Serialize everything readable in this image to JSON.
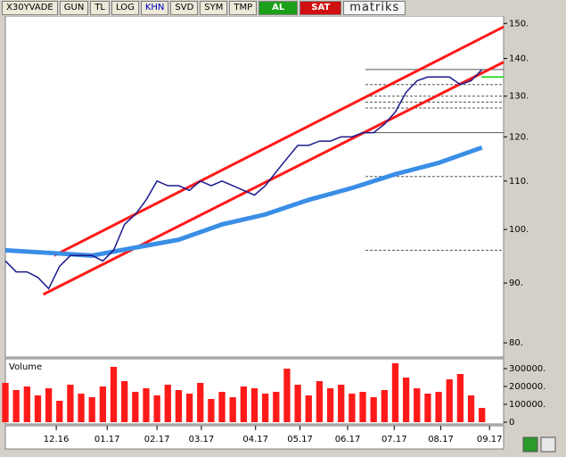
{
  "toolbar": {
    "symbol": "X30YVADE",
    "buttons": [
      "GUN",
      "TL",
      "LOG",
      "KHN",
      "SVD",
      "SYM",
      "TMP"
    ],
    "buy": "AL",
    "sell": "SAT",
    "brand": "matriks"
  },
  "chart_data": {
    "type": "line",
    "log_scale": true,
    "xlim": [
      0,
      46
    ],
    "xticks": [
      {
        "value": 4.7,
        "label": "12.16"
      },
      {
        "value": 9.4,
        "label": "01.17"
      },
      {
        "value": 14,
        "label": "02.17"
      },
      {
        "value": 18.1,
        "label": "03.17"
      },
      {
        "value": 23.1,
        "label": "04.17"
      },
      {
        "value": 27.2,
        "label": "05.17"
      },
      {
        "value": 31.6,
        "label": "06.17"
      },
      {
        "value": 35.9,
        "label": "07.17"
      },
      {
        "value": 40.2,
        "label": "08.17"
      },
      {
        "value": 44.7,
        "label": "09.17"
      }
    ],
    "ylim": [
      77.8,
      152.2
    ],
    "yticks": [
      {
        "value": 80,
        "label": "80."
      },
      {
        "value": 90,
        "label": "90."
      },
      {
        "value": 100,
        "label": "100."
      },
      {
        "value": 110,
        "label": "110."
      },
      {
        "value": 120,
        "label": "120."
      },
      {
        "value": 130,
        "label": "130."
      },
      {
        "value": 140,
        "label": "140."
      },
      {
        "value": 150,
        "label": "150."
      }
    ],
    "series": [
      {
        "color": "#ff1a1a",
        "width": 3,
        "x": [
          4.5,
          46
        ],
        "values": [
          95,
          149
        ]
      },
      {
        "color": "#ff1a1a",
        "width": 3,
        "x": [
          3.5,
          46
        ],
        "values": [
          88,
          139
        ]
      },
      {
        "color": "#3a8ee6",
        "width": 5,
        "x": [
          0,
          4,
          8,
          12,
          16,
          20,
          24,
          28,
          32,
          36,
          40,
          44
        ],
        "values": [
          96,
          95.5,
          95,
          96.5,
          98,
          101,
          103,
          106,
          108.5,
          111.5,
          114,
          117.5
        ]
      },
      {
        "color": "#1a1a8c",
        "width": 1.5,
        "x": [
          0,
          1,
          2,
          3,
          4,
          5,
          6,
          7,
          8,
          9,
          10,
          11,
          12,
          13,
          14,
          15,
          16,
          17,
          18,
          19,
          20,
          21,
          22,
          23,
          24,
          25,
          26,
          27,
          28,
          29,
          30,
          31,
          32,
          33,
          34,
          35,
          36,
          37,
          38,
          39,
          40,
          41,
          42,
          43,
          44
        ],
        "values": [
          94,
          92,
          92,
          91,
          89,
          93,
          95,
          95,
          95,
          94,
          96,
          101,
          103,
          106,
          110,
          109,
          109,
          108,
          110,
          109,
          110,
          109,
          108,
          107,
          109,
          112,
          115,
          118,
          118,
          119,
          119,
          120,
          120,
          121,
          121,
          123,
          126,
          131,
          134,
          135,
          135,
          135,
          133,
          134,
          137
        ]
      }
    ],
    "levels": [
      {
        "value": 137,
        "style": "solid",
        "color": "#555555"
      },
      {
        "value": 133,
        "style": "dashed",
        "color": "#555555"
      },
      {
        "value": 130,
        "style": "dashed",
        "color": "#555555"
      },
      {
        "value": 128.5,
        "style": "dashed",
        "color": "#555555"
      },
      {
        "value": 127,
        "style": "dashed",
        "color": "#555555"
      },
      {
        "value": 121,
        "style": "solid",
        "color": "#555555"
      },
      {
        "value": 111,
        "style": "dashed",
        "color": "#555555"
      },
      {
        "value": 96,
        "style": "dashed",
        "color": "#555555"
      },
      {
        "value": 135,
        "style": "solid",
        "color": "#33dd33"
      }
    ],
    "volume": {
      "type": "bar",
      "title": "Volume",
      "color": "#ff1a1a",
      "ylim": [
        0,
        355000
      ],
      "yticks": [
        {
          "value": 0,
          "label": "0"
        },
        {
          "value": 100000,
          "label": "100000."
        },
        {
          "value": 200000,
          "label": "200000."
        },
        {
          "value": 300000,
          "label": "300000."
        }
      ],
      "x": [
        0,
        1,
        2,
        3,
        4,
        5,
        6,
        7,
        8,
        9,
        10,
        11,
        12,
        13,
        14,
        15,
        16,
        17,
        18,
        19,
        20,
        21,
        22,
        23,
        24,
        25,
        26,
        27,
        28,
        29,
        30,
        31,
        32,
        33,
        34,
        35,
        36,
        37,
        38,
        39,
        40,
        41,
        42,
        43,
        44
      ],
      "values": [
        220000,
        180000,
        200000,
        150000,
        190000,
        120000,
        210000,
        160000,
        140000,
        200000,
        310000,
        230000,
        170000,
        190000,
        150000,
        210000,
        180000,
        160000,
        220000,
        130000,
        170000,
        140000,
        200000,
        190000,
        160000,
        170000,
        300000,
        210000,
        150000,
        230000,
        190000,
        210000,
        160000,
        170000,
        140000,
        180000,
        330000,
        250000,
        190000,
        160000,
        170000,
        240000,
        270000,
        150000,
        80000
      ]
    }
  }
}
